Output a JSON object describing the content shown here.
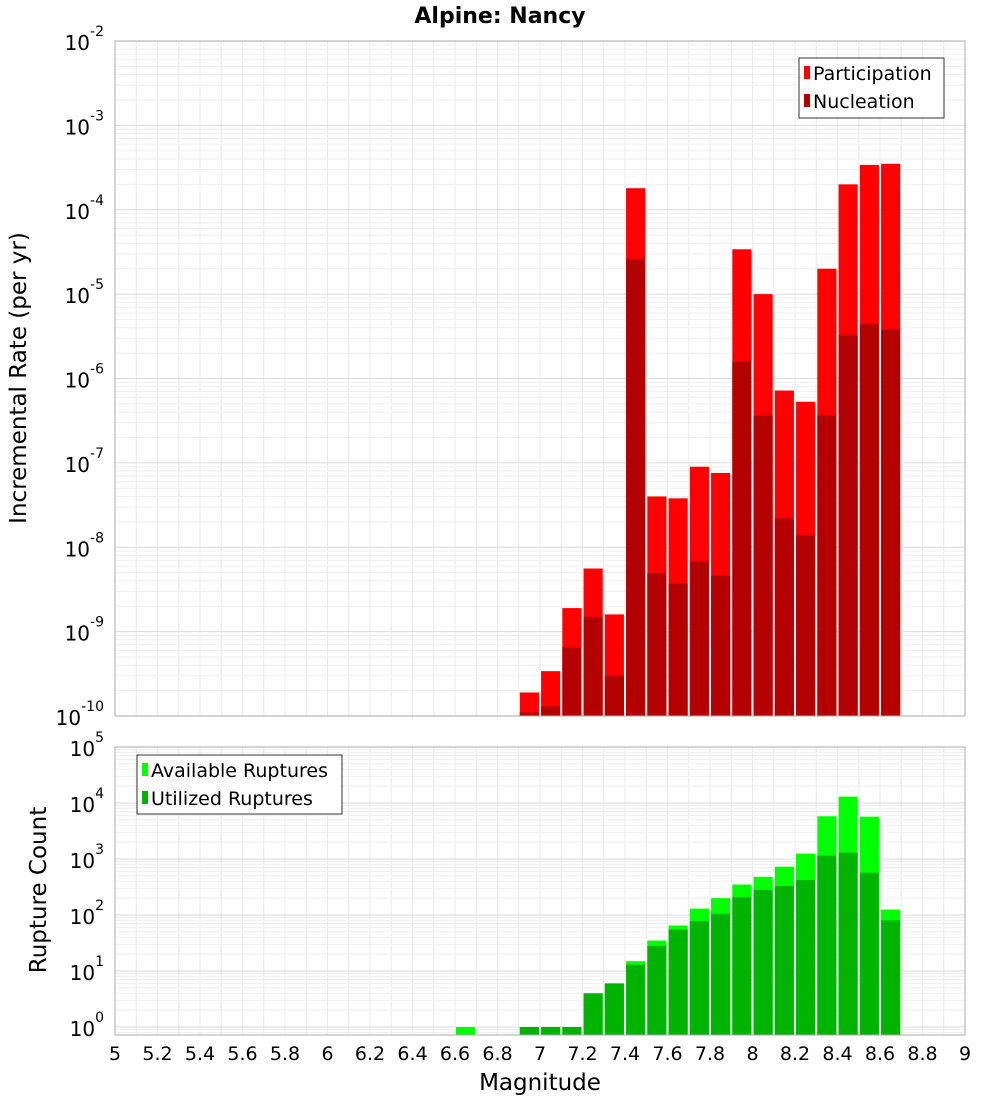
{
  "chart_data": [
    {
      "type": "bar",
      "title": "Alpine: Nancy",
      "xlabel": "",
      "ylabel": "Incremental Rate (per yr)",
      "yscale": "log",
      "xlim": [
        5,
        9
      ],
      "ylim": [
        1e-10,
        0.01
      ],
      "ytick_labels": [
        {
          "base": "10",
          "exp": "-10",
          "value": 1e-10
        },
        {
          "base": "10",
          "exp": "-9",
          "value": 1e-09
        },
        {
          "base": "10",
          "exp": "-8",
          "value": 1e-08
        },
        {
          "base": "10",
          "exp": "-7",
          "value": 1e-07
        },
        {
          "base": "10",
          "exp": "-6",
          "value": 1e-06
        },
        {
          "base": "10",
          "exp": "-5",
          "value": 1e-05
        },
        {
          "base": "10",
          "exp": "-4",
          "value": 0.0001
        },
        {
          "base": "10",
          "exp": "-3",
          "value": 0.001
        },
        {
          "base": "10",
          "exp": "-2",
          "value": 0.01
        }
      ],
      "grid": true,
      "legend": {
        "position": "top-right",
        "entries": [
          "Participation",
          "Nucleation"
        ]
      },
      "bar_width": 0.09,
      "x": [
        6.95,
        7.05,
        7.15,
        7.25,
        7.35,
        7.45,
        7.55,
        7.65,
        7.75,
        7.85,
        7.95,
        8.05,
        8.15,
        8.25,
        8.35,
        8.45,
        8.55,
        8.65
      ],
      "series": [
        {
          "name": "Participation",
          "color": "#ff0000",
          "values": [
            1.9e-10,
            3.4e-10,
            1.9e-09,
            5.6e-09,
            1.6e-09,
            0.00018,
            4e-08,
            3.8e-08,
            9e-08,
            7.6e-08,
            3.4e-05,
            1e-05,
            7.2e-07,
            5.3e-07,
            2e-05,
            0.0002,
            0.00034,
            0.00035
          ]
        },
        {
          "name": "Nucleation",
          "color": "#b30000",
          "values": [
            1.1e-10,
            1.3e-10,
            6.5e-10,
            1.5e-09,
            3e-10,
            2.6e-05,
            4.9e-09,
            3.7e-09,
            6.8e-09,
            4.6e-09,
            1.6e-06,
            3.7e-07,
            2.2e-08,
            1.4e-08,
            3.7e-07,
            3.3e-06,
            4.4e-06,
            3.8e-06
          ]
        }
      ]
    },
    {
      "type": "bar",
      "title": "",
      "xlabel": "Magnitude",
      "ylabel": "Rupture Count",
      "yscale": "log",
      "xlim": [
        5,
        9
      ],
      "ylim": [
        0.72,
        100000.0
      ],
      "ytick_labels": [
        {
          "base": "10",
          "exp": "0",
          "value": 1
        },
        {
          "base": "10",
          "exp": "1",
          "value": 10
        },
        {
          "base": "10",
          "exp": "2",
          "value": 100
        },
        {
          "base": "10",
          "exp": "3",
          "value": 1000
        },
        {
          "base": "10",
          "exp": "4",
          "value": 10000
        },
        {
          "base": "10",
          "exp": "5",
          "value": 100000
        }
      ],
      "xtick_labels": [
        "5",
        "5.2",
        "5.4",
        "5.6",
        "5.8",
        "6",
        "6.2",
        "6.4",
        "6.6",
        "6.8",
        "7",
        "7.2",
        "7.4",
        "7.6",
        "7.8",
        "8",
        "8.2",
        "8.4",
        "8.6",
        "8.8",
        "9"
      ],
      "grid": true,
      "legend": {
        "position": "top-left",
        "entries": [
          "Available Ruptures",
          "Utilized Ruptures"
        ]
      },
      "bar_width": 0.09,
      "x": [
        6.65,
        6.95,
        7.05,
        7.15,
        7.25,
        7.35,
        7.45,
        7.55,
        7.65,
        7.75,
        7.85,
        7.95,
        8.05,
        8.15,
        8.25,
        8.35,
        8.45,
        8.55,
        8.65
      ],
      "series": [
        {
          "name": "Available Ruptures",
          "color": "#00ff00",
          "values": [
            1,
            1,
            1,
            1,
            4,
            6,
            15,
            35,
            65,
            130,
            200,
            350,
            480,
            730,
            1250,
            5800,
            13000,
            5700,
            125
          ]
        },
        {
          "name": "Utilized Ruptures",
          "color": "#00b300",
          "values": [
            0,
            1,
            1,
            1,
            4,
            6,
            13,
            28,
            55,
            78,
            105,
            210,
            280,
            330,
            420,
            1150,
            1300,
            570,
            80
          ]
        }
      ]
    }
  ]
}
